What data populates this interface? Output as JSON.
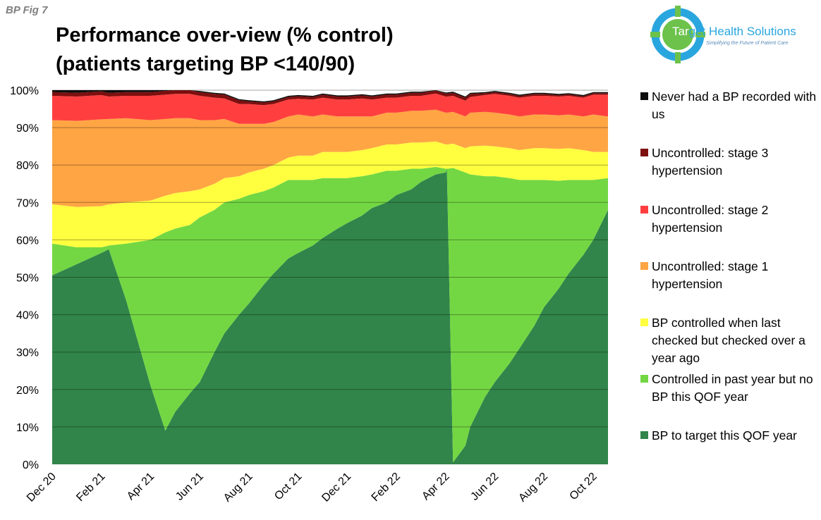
{
  "figure_label": "BP Fig 7",
  "title_lines": [
    "Performance over-view (% control)",
    "(patients targeting BP <140/90)"
  ],
  "logo": {
    "brand_part1": "Tar",
    "brand_part2": "get Health Solutions",
    "tagline": "Simplifying the Future of Patient Care",
    "colors": {
      "ring": "#2aa6df",
      "center": "#6cc24a",
      "text": "#2aa6df"
    }
  },
  "chart_data": {
    "type": "area",
    "stacked": true,
    "title": "Performance over-view (% control) (patients targeting BP <140/90)",
    "xlabel": "",
    "ylabel": "",
    "ylim": [
      0,
      100
    ],
    "y_ticks": [
      "0%",
      "10%",
      "20%",
      "30%",
      "40%",
      "50%",
      "60%",
      "70%",
      "80%",
      "90%",
      "100%"
    ],
    "x_tick_labels": [
      "Dec 20",
      "Feb 21",
      "Apr 21",
      "Jun 21",
      "Aug 21",
      "Oct 21",
      "Dec 21",
      "Feb 22",
      "Apr 22",
      "Jun 22",
      "Aug 22",
      "Oct 22"
    ],
    "x_tick_positions": [
      0,
      2,
      4,
      6,
      8,
      10,
      12,
      14,
      16,
      18,
      20,
      22
    ],
    "x_range": [
      0,
      22.6
    ],
    "grid": true,
    "legend_position": "right",
    "series": [
      {
        "name": "BP to target this QOF year",
        "color": "#31854a",
        "x": [
          0,
          1,
          2,
          2.3,
          3,
          4,
          4.6,
          5,
          5.6,
          6,
          6.6,
          7,
          7.6,
          8,
          8.6,
          9,
          9.6,
          10,
          10.6,
          11,
          11.6,
          12,
          12.6,
          13,
          13.6,
          14,
          14.6,
          15,
          15.6,
          16,
          16.05,
          16.3,
          16.8,
          17,
          17.6,
          18,
          18.6,
          19,
          19.6,
          20,
          20.6,
          21,
          21.6,
          22,
          22.6
        ],
        "values": [
          50.5,
          53.5,
          56.5,
          57.5,
          44.0,
          21.0,
          9.0,
          14.0,
          19.0,
          22.0,
          30.0,
          35.0,
          40.0,
          43.0,
          48.0,
          51.0,
          55.0,
          56.5,
          58.5,
          60.5,
          63.0,
          64.5,
          66.5,
          68.5,
          70.0,
          72.0,
          73.5,
          75.5,
          77.5,
          78.0,
          79.0,
          0.5,
          5.0,
          10.0,
          18.0,
          22.0,
          27.0,
          31.0,
          37.0,
          42.0,
          47.0,
          51.0,
          56.0,
          60.0,
          68.0
        ]
      },
      {
        "name": "Controlled in past year but no BP this QOF year",
        "color": "#73d743",
        "x": [
          0,
          1,
          2,
          2.3,
          3,
          4,
          4.6,
          5,
          5.6,
          6,
          6.6,
          7,
          7.6,
          8,
          8.6,
          9,
          9.6,
          10,
          10.6,
          11,
          11.6,
          12,
          12.6,
          13,
          13.6,
          14,
          14.6,
          15,
          15.6,
          16,
          16.05,
          16.3,
          16.8,
          17,
          17.6,
          18,
          18.6,
          19,
          19.6,
          20,
          20.6,
          21,
          21.6,
          22,
          22.6
        ],
        "values": [
          8.5,
          4.5,
          1.5,
          1.0,
          15.0,
          39.0,
          53.0,
          49.0,
          45.0,
          44.0,
          38.0,
          35.0,
          31.0,
          29.0,
          25.0,
          23.0,
          21.0,
          19.5,
          17.5,
          16.0,
          13.5,
          12.0,
          10.5,
          9.0,
          8.5,
          6.5,
          5.5,
          3.5,
          2.0,
          1.0,
          0.0,
          78.7,
          73.0,
          67.5,
          59.0,
          55.0,
          49.5,
          45.0,
          39.0,
          34.0,
          28.8,
          25.0,
          20.0,
          16.0,
          8.5
        ]
      },
      {
        "name": "BP controlled when last checked but checked over a year ago",
        "color": "#ffff40",
        "x": [
          0,
          1,
          2,
          2.3,
          3,
          4,
          4.6,
          5,
          5.6,
          6,
          6.6,
          7,
          7.6,
          8,
          8.6,
          9,
          9.6,
          10,
          10.6,
          11,
          11.6,
          12,
          12.6,
          13,
          13.6,
          14,
          14.6,
          15,
          15.6,
          16,
          16.05,
          16.3,
          16.8,
          17,
          17.6,
          18,
          18.6,
          19,
          19.6,
          20,
          20.6,
          21,
          21.6,
          22,
          22.6
        ],
        "values": [
          10.5,
          10.8,
          11.0,
          11.0,
          11.0,
          10.5,
          9.8,
          9.5,
          9.0,
          7.5,
          7.0,
          6.5,
          6.0,
          6.0,
          6.0,
          6.0,
          6.0,
          6.5,
          6.5,
          7.0,
          7.0,
          7.0,
          7.0,
          7.0,
          7.0,
          7.0,
          7.0,
          7.0,
          6.8,
          6.5,
          6.5,
          6.5,
          6.5,
          7.5,
          8.2,
          8.0,
          8.0,
          8.0,
          8.5,
          8.5,
          8.5,
          8.5,
          8.0,
          7.5,
          7.0
        ]
      },
      {
        "name": "Uncontrolled: stage 1 hypertension",
        "color": "#ffa544",
        "x": [
          0,
          1,
          2,
          2.3,
          3,
          4,
          4.6,
          5,
          5.6,
          6,
          6.6,
          7,
          7.6,
          8,
          8.6,
          9,
          9.6,
          10,
          10.6,
          11,
          11.6,
          12,
          12.6,
          13,
          13.6,
          14,
          14.6,
          15,
          15.6,
          16,
          16.05,
          16.3,
          16.8,
          17,
          17.6,
          18,
          18.6,
          19,
          19.6,
          20,
          20.6,
          21,
          21.6,
          22,
          22.6
        ],
        "values": [
          22.5,
          23.0,
          23.2,
          22.8,
          22.5,
          21.5,
          20.5,
          20.0,
          19.5,
          18.5,
          17.0,
          15.8,
          14.0,
          13.0,
          12.0,
          11.5,
          11.0,
          11.0,
          10.5,
          10.0,
          9.5,
          9.5,
          9.0,
          8.5,
          8.5,
          8.5,
          8.5,
          8.5,
          8.5,
          8.5,
          8.5,
          8.5,
          8.5,
          9.0,
          9.0,
          9.0,
          9.0,
          9.0,
          9.0,
          9.0,
          9.0,
          9.0,
          9.0,
          10.0,
          9.5
        ]
      },
      {
        "name": "Uncontrolled: stage 2 hypertension",
        "color": "#ff3f3f",
        "x": [
          0,
          1,
          2,
          2.3,
          3,
          4,
          4.6,
          5,
          5.6,
          6,
          6.6,
          7,
          7.6,
          8,
          8.6,
          9,
          9.6,
          10,
          10.6,
          11,
          11.6,
          12,
          12.6,
          13,
          13.6,
          14,
          14.6,
          15,
          15.6,
          16,
          16.05,
          16.3,
          16.8,
          17,
          17.6,
          18,
          18.6,
          19,
          19.6,
          20,
          20.6,
          21,
          21.6,
          22,
          22.6
        ],
        "values": [
          6.5,
          6.5,
          6.5,
          6.0,
          6.0,
          6.5,
          6.5,
          6.5,
          6.5,
          6.5,
          6.0,
          5.5,
          5.3,
          5.3,
          5.0,
          4.8,
          4.5,
          4.2,
          4.5,
          4.5,
          4.5,
          4.5,
          4.8,
          4.5,
          4.0,
          4.0,
          4.0,
          4.0,
          4.3,
          4.3,
          4.3,
          4.3,
          4.2,
          4.2,
          4.5,
          5.0,
          5.0,
          5.0,
          5.0,
          5.0,
          5.0,
          5.0,
          5.0,
          5.3,
          5.8
        ]
      },
      {
        "name": "Uncontrolled: stage 3 hypertension",
        "color": "#7d0f0f",
        "x": [
          0,
          1,
          2,
          2.3,
          3,
          4,
          4.6,
          5,
          5.6,
          6,
          6.6,
          7,
          7.6,
          8,
          8.6,
          9,
          9.6,
          10,
          10.6,
          11,
          11.6,
          12,
          12.6,
          13,
          13.6,
          14,
          14.6,
          15,
          15.6,
          16,
          16.05,
          16.3,
          16.8,
          17,
          17.6,
          18,
          18.6,
          19,
          19.6,
          20,
          20.6,
          21,
          21.6,
          22,
          22.6
        ],
        "values": [
          1.0,
          1.0,
          1.0,
          1.0,
          1.0,
          1.0,
          1.0,
          1.0,
          1.0,
          1.0,
          1.0,
          1.0,
          1.0,
          0.7,
          0.7,
          0.7,
          0.7,
          0.7,
          0.7,
          0.8,
          0.8,
          0.8,
          0.8,
          0.8,
          0.8,
          0.8,
          0.8,
          0.8,
          0.8,
          0.8,
          0.8,
          0.8,
          0.8,
          0.8,
          0.5,
          0.5,
          0.5,
          0.5,
          0.5,
          0.5,
          0.4,
          0.4,
          0.4,
          0.4,
          0.4
        ]
      },
      {
        "name": "Never had a BP recorded with us",
        "color": "#0d0d0d",
        "x": [
          0,
          1,
          2,
          2.3,
          3,
          4,
          4.6,
          5,
          5.6,
          6,
          6.6,
          7,
          7.6,
          8,
          8.6,
          9,
          9.6,
          10,
          10.6,
          11,
          11.6,
          12,
          12.6,
          13,
          13.6,
          14,
          14.6,
          15,
          15.6,
          16,
          16.05,
          16.3,
          16.8,
          17,
          17.6,
          18,
          18.6,
          19,
          19.6,
          20,
          20.6,
          21,
          21.6,
          22,
          22.6
        ],
        "values": [
          0.5,
          0.7,
          0.8,
          0.7,
          0.5,
          0.5,
          0.4,
          0.4,
          0.3,
          0.3,
          0.3,
          0.3,
          0.3,
          0.3,
          0.3,
          0.3,
          0.3,
          0.3,
          0.3,
          0.3,
          0.3,
          0.3,
          0.3,
          0.3,
          0.3,
          0.3,
          0.3,
          0.3,
          0.3,
          0.3,
          0.3,
          0.3,
          0.3,
          0.3,
          0.3,
          0.3,
          0.3,
          0.3,
          0.3,
          0.3,
          0.3,
          0.3,
          0.3,
          0.3,
          0.3
        ]
      }
    ],
    "legend_order": [
      6,
      5,
      4,
      3,
      2,
      1,
      0
    ]
  }
}
